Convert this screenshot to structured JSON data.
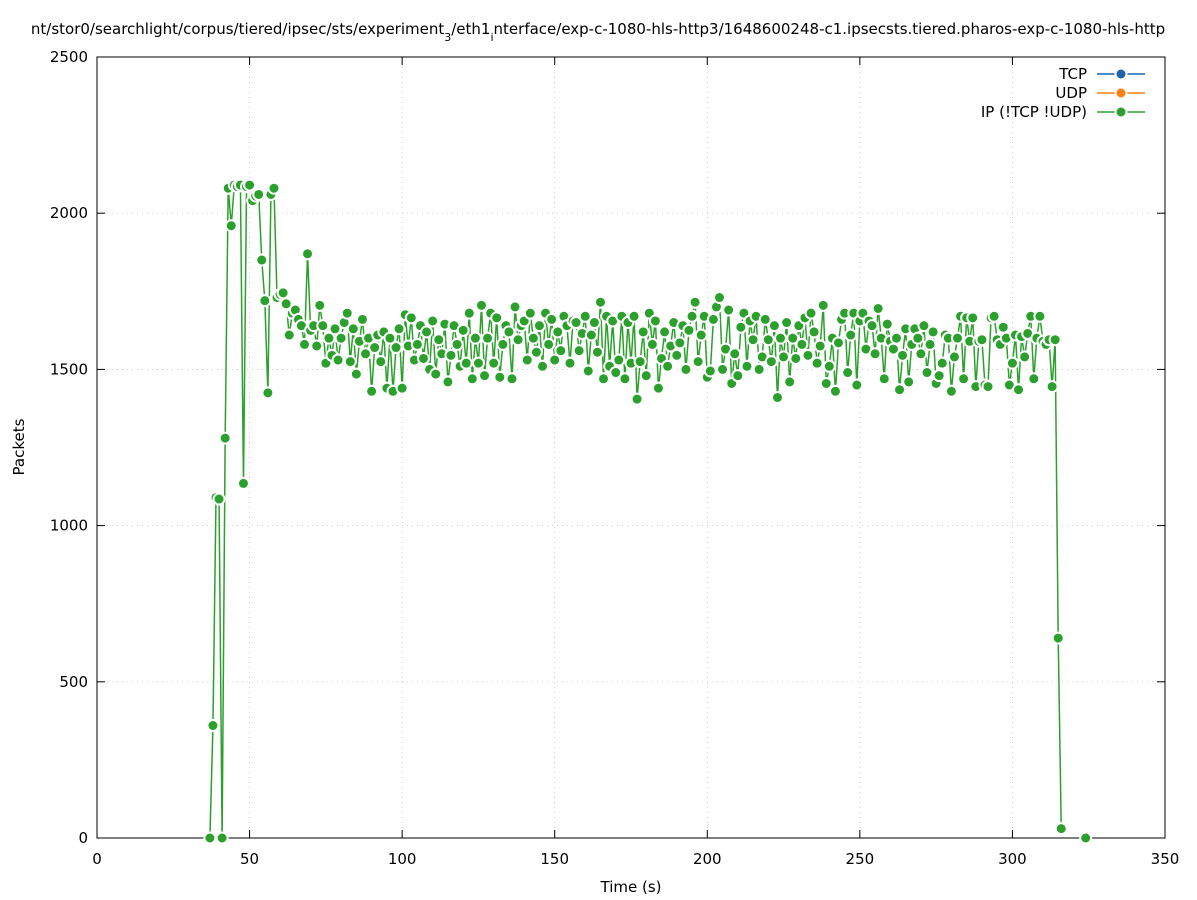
{
  "chart_data": {
    "type": "line",
    "title_parts": [
      "nt/stor0/searchlight/corpus/tiered/ipsec/sts/experiment",
      "3",
      "/eth1",
      "i",
      "nterface/exp-c-1080-hls-http3/1648600248-c1.ipsecsts.tiered.pharos-exp-c-1080-hls-http"
    ],
    "xlabel": "Time (s)",
    "ylabel": "Packets",
    "xlim": [
      0,
      350
    ],
    "xticks": [
      0,
      50,
      100,
      150,
      200,
      250,
      300,
      350
    ],
    "ylim": [
      0,
      2500
    ],
    "yticks": [
      0,
      500,
      1000,
      1500,
      2000,
      2500
    ],
    "grid": true,
    "legend": "top right",
    "series": [
      {
        "name": "TCP",
        "color": "#1f63ad",
        "x": [],
        "values": []
      },
      {
        "name": "UDP",
        "color": "#ff7f0e",
        "x": [],
        "values": []
      },
      {
        "name": "IP (!TCP  !UDP)",
        "color": "#2ca02c",
        "x": [
          37,
          38,
          39,
          40,
          41,
          42,
          43,
          44,
          45,
          46,
          47,
          48,
          49,
          50,
          51,
          52,
          53,
          54,
          55,
          56,
          57,
          58,
          59,
          60,
          61,
          62,
          63,
          64,
          65,
          66,
          67,
          68,
          69,
          70,
          71,
          72,
          73,
          74,
          75,
          76,
          77,
          78,
          79,
          80,
          81,
          82,
          83,
          84,
          85,
          86,
          87,
          88,
          89,
          90,
          91,
          92,
          93,
          94,
          95,
          96,
          97,
          98,
          99,
          100,
          101,
          102,
          103,
          104,
          105,
          106,
          107,
          108,
          109,
          110,
          111,
          112,
          113,
          114,
          115,
          116,
          117,
          118,
          119,
          120,
          121,
          122,
          123,
          124,
          125,
          126,
          127,
          128,
          129,
          130,
          131,
          132,
          133,
          134,
          135,
          136,
          137,
          138,
          139,
          140,
          141,
          142,
          143,
          144,
          145,
          146,
          147,
          148,
          149,
          150,
          151,
          152,
          153,
          154,
          155,
          156,
          157,
          158,
          159,
          160,
          161,
          162,
          163,
          164,
          165,
          166,
          167,
          168,
          169,
          170,
          171,
          172,
          173,
          174,
          175,
          176,
          177,
          178,
          179,
          180,
          181,
          182,
          183,
          184,
          185,
          186,
          187,
          188,
          189,
          190,
          191,
          192,
          193,
          194,
          195,
          196,
          197,
          198,
          199,
          200,
          201,
          202,
          203,
          204,
          205,
          206,
          207,
          208,
          209,
          210,
          211,
          212,
          213,
          214,
          215,
          216,
          217,
          218,
          219,
          220,
          221,
          222,
          223,
          224,
          225,
          226,
          227,
          228,
          229,
          230,
          231,
          232,
          233,
          234,
          235,
          236,
          237,
          238,
          239,
          240,
          241,
          242,
          243,
          244,
          245,
          246,
          247,
          248,
          249,
          250,
          251,
          252,
          253,
          254,
          255,
          256,
          257,
          258,
          259,
          260,
          261,
          262,
          263,
          264,
          265,
          266,
          267,
          268,
          269,
          270,
          271,
          272,
          273,
          274,
          275,
          276,
          277,
          278,
          279,
          280,
          281,
          282,
          283,
          284,
          285,
          286,
          287,
          288,
          289,
          290,
          291,
          292,
          293,
          294,
          295,
          296,
          297,
          298,
          299,
          300,
          301,
          302,
          303,
          304,
          305,
          306,
          307,
          308,
          309,
          310,
          311,
          312,
          313,
          314,
          315,
          316,
          317,
          324
        ],
        "values": [
          0,
          360,
          1090,
          1085,
          0,
          1280,
          2080,
          1960,
          2090,
          2085,
          2090,
          1135,
          2085,
          2090,
          2040,
          2055,
          2060,
          1850,
          1720,
          1425,
          2060,
          2080,
          1730,
          1740,
          1745,
          1710,
          1610,
          1680,
          1690,
          1660,
          1640,
          1580,
          1870,
          1625,
          1640,
          1575,
          1705,
          1640,
          1520,
          1600,
          1545,
          1630,
          1530,
          1600,
          1650,
          1680,
          1525,
          1630,
          1485,
          1590,
          1660,
          1550,
          1600,
          1430,
          1570,
          1610,
          1525,
          1620,
          1440,
          1600,
          1430,
          1570,
          1630,
          1440,
          1675,
          1575,
          1665,
          1530,
          1580,
          1640,
          1535,
          1620,
          1500,
          1655,
          1485,
          1595,
          1550,
          1645,
          1460,
          1545,
          1640,
          1580,
          1510,
          1625,
          1520,
          1680,
          1470,
          1600,
          1520,
          1705,
          1480,
          1600,
          1680,
          1520,
          1665,
          1475,
          1580,
          1640,
          1620,
          1470,
          1700,
          1595,
          1640,
          1655,
          1530,
          1680,
          1600,
          1555,
          1640,
          1510,
          1680,
          1580,
          1660,
          1530,
          1620,
          1560,
          1670,
          1640,
          1520,
          1655,
          1650,
          1560,
          1615,
          1670,
          1495,
          1610,
          1650,
          1555,
          1715,
          1470,
          1670,
          1510,
          1655,
          1490,
          1530,
          1670,
          1470,
          1650,
          1520,
          1670,
          1405,
          1525,
          1620,
          1480,
          1680,
          1580,
          1655,
          1440,
          1535,
          1620,
          1510,
          1575,
          1650,
          1545,
          1585,
          1640,
          1500,
          1625,
          1670,
          1715,
          1525,
          1610,
          1670,
          1475,
          1495,
          1660,
          1700,
          1730,
          1500,
          1565,
          1690,
          1455,
          1550,
          1480,
          1635,
          1680,
          1510,
          1655,
          1595,
          1670,
          1500,
          1540,
          1660,
          1595,
          1525,
          1640,
          1410,
          1600,
          1540,
          1650,
          1460,
          1600,
          1535,
          1640,
          1580,
          1665,
          1545,
          1680,
          1620,
          1520,
          1575,
          1705,
          1455,
          1510,
          1600,
          1430,
          1585,
          1660,
          1680,
          1490,
          1610,
          1680,
          1450,
          1655,
          1680,
          1565,
          1655,
          1640,
          1550,
          1695,
          1600,
          1470,
          1645,
          1590,
          1565,
          1600,
          1435,
          1545,
          1630,
          1460,
          1580,
          1630,
          1600,
          1550,
          1640,
          1490,
          1580,
          1620,
          1455,
          1480,
          1520,
          1610,
          1600,
          1430,
          1540,
          1600,
          1670,
          1470,
          1665,
          1590,
          1665,
          1445,
          1590,
          1595,
          1450,
          1445,
          1665,
          1670,
          1595,
          1580,
          1635,
          1600,
          1450,
          1520,
          1610,
          1435,
          1605,
          1540,
          1615,
          1670,
          1470,
          1600,
          1670,
          1590,
          1580,
          1595,
          1445,
          1595,
          640,
          30,
          null,
          0
        ]
      }
    ]
  }
}
